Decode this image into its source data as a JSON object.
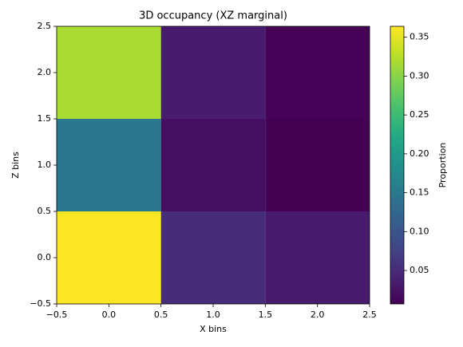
{
  "chart_data": {
    "type": "heatmap",
    "title": "3D occupancy (XZ marginal)",
    "xlabel": "X bins",
    "ylabel": "Z bins",
    "x": [
      0,
      1,
      2
    ],
    "y": [
      0,
      1,
      2
    ],
    "values": [
      [
        0.364,
        0.053,
        0.032
      ],
      [
        0.15,
        0.02,
        0.007
      ],
      [
        0.318,
        0.035,
        0.009
      ]
    ],
    "xlim": [
      -0.5,
      2.5
    ],
    "xticks": [
      {
        "value": -0.5,
        "label": "−0.5"
      },
      {
        "value": 0,
        "label": "0.0"
      },
      0.5,
      {
        "value": 1,
        "label": "1.0"
      },
      1.5,
      {
        "value": 2,
        "label": "2.0"
      },
      2.5
    ],
    "ylim": [
      -0.5,
      2.5
    ],
    "yticks": [
      {
        "value": -0.5,
        "label": "−0.5"
      },
      {
        "value": 0,
        "label": "0.0"
      },
      0.5,
      {
        "value": 1,
        "label": "1.0"
      },
      1.5,
      {
        "value": 2,
        "label": "2.0"
      },
      2.5
    ],
    "colormap": "viridis",
    "clim": [
      0.007,
      0.364
    ],
    "colorbar_label": "Proportion",
    "colorbar_ticks": [
      0.05,
      {
        "value": 0.1,
        "label": "0.10"
      },
      0.15,
      {
        "value": 0.2,
        "label": "0.20"
      },
      0.25,
      {
        "value": 0.3,
        "label": "0.30"
      },
      0.35
    ]
  }
}
